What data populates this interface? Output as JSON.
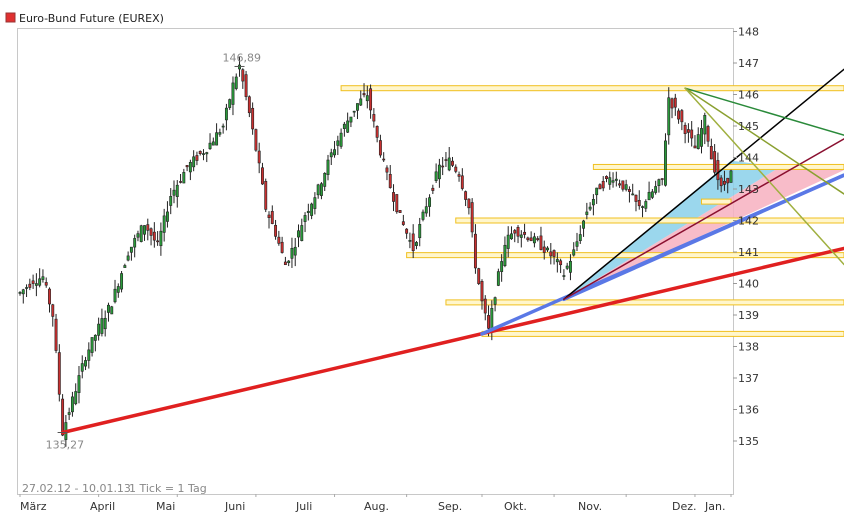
{
  "legend": {
    "title": "Euro-Bund Future (EUREX)",
    "color": "#e03030"
  },
  "footer": {
    "range_label": "27.02.12 - 10.01.13",
    "tick_label": "1 Tick = 1 Tag"
  },
  "chart_data": {
    "type": "candlestick",
    "title": "Euro-Bund Future (EUREX)",
    "x_labels": [
      "März",
      "April",
      "Mai",
      "Juni",
      "Juli",
      "Aug.",
      "Sep.",
      "Okt.",
      "Nov.",
      "Dez.",
      "Jan."
    ],
    "y_ticks": [
      135,
      136,
      137,
      138,
      139,
      140,
      141,
      142,
      143,
      144,
      145,
      146,
      147,
      148
    ],
    "ylim": [
      134.1,
      148.5
    ],
    "annotations": [
      {
        "text": "146,89",
        "day": 67,
        "value": 146.89
      },
      {
        "text": "135,27",
        "day": 13,
        "value": 135.27
      }
    ],
    "price_path": [
      [
        0,
        139.7
      ],
      [
        4,
        140.1
      ],
      [
        7,
        140.2
      ],
      [
        10,
        139.0
      ],
      [
        13,
        135.27
      ],
      [
        16,
        136.3
      ],
      [
        20,
        137.7
      ],
      [
        24,
        138.6
      ],
      [
        28,
        139.4
      ],
      [
        33,
        141.0
      ],
      [
        38,
        141.9
      ],
      [
        42,
        141.2
      ],
      [
        46,
        142.8
      ],
      [
        51,
        143.7
      ],
      [
        57,
        144.3
      ],
      [
        62,
        145.0
      ],
      [
        65,
        146.3
      ],
      [
        67,
        146.9
      ],
      [
        70,
        145.4
      ],
      [
        73,
        143.7
      ],
      [
        75,
        142.4
      ],
      [
        78,
        141.6
      ],
      [
        81,
        140.6
      ],
      [
        84,
        141.3
      ],
      [
        87,
        142.2
      ],
      [
        91,
        143.0
      ],
      [
        95,
        144.1
      ],
      [
        99,
        145.0
      ],
      [
        103,
        145.7
      ],
      [
        106,
        146.0
      ],
      [
        109,
        144.6
      ],
      [
        112,
        143.4
      ],
      [
        116,
        142.1
      ],
      [
        120,
        141.1
      ],
      [
        124,
        142.5
      ],
      [
        128,
        143.7
      ],
      [
        131,
        143.9
      ],
      [
        134,
        143.5
      ],
      [
        137,
        142.4
      ],
      [
        139,
        140.6
      ],
      [
        141,
        139.4
      ],
      [
        143,
        138.5
      ],
      [
        145,
        139.7
      ],
      [
        148,
        141.3
      ],
      [
        151,
        141.7
      ],
      [
        155,
        141.5
      ],
      [
        159,
        141.2
      ],
      [
        163,
        140.8
      ],
      [
        166,
        140.3
      ],
      [
        169,
        141.0
      ],
      [
        173,
        142.3
      ],
      [
        177,
        143.1
      ],
      [
        181,
        143.4
      ],
      [
        185,
        143.0
      ],
      [
        189,
        142.4
      ],
      [
        193,
        142.9
      ],
      [
        196,
        143.3
      ],
      [
        198,
        145.9
      ],
      [
        202,
        145.1
      ],
      [
        206,
        144.3
      ],
      [
        209,
        145.2
      ],
      [
        211,
        144.0
      ],
      [
        214,
        143.0
      ],
      [
        217,
        143.5
      ]
    ],
    "horizontal_levels": [
      {
        "value": 146.2,
        "day_start": 98,
        "color": "#f0c020"
      },
      {
        "value": 143.7,
        "day_start": 175,
        "color": "#f0c020"
      },
      {
        "value": 142.0,
        "day_start": 133,
        "color": "#f0c020"
      },
      {
        "value": 140.9,
        "day_start": 118,
        "color": "#f0c020"
      },
      {
        "value": 139.4,
        "day_start": 130,
        "color": "#f0c020"
      },
      {
        "value": 138.4,
        "day_start": 141,
        "color": "#f0c020"
      },
      {
        "value": 142.6,
        "day_start": 208,
        "day_end": 217,
        "color": "#f0c020"
      }
    ],
    "trend_lines": [
      {
        "color": "#e02020",
        "from": [
          13,
          135.27
        ],
        "to": [
          255,
          141.2
        ]
      },
      {
        "color": "#5a78e6",
        "from": [
          141,
          138.4
        ],
        "to": [
          255,
          143.6
        ]
      },
      {
        "color": "#5a78e6",
        "from": [
          166,
          139.5
        ],
        "to": [
          255,
          143.6
        ]
      },
      {
        "color": "#000000",
        "from": [
          166,
          139.5
        ],
        "to": [
          255,
          147.1
        ]
      },
      {
        "color": "#8a1030",
        "from": [
          166,
          139.5
        ],
        "to": [
          255,
          144.8
        ]
      },
      {
        "color": "#2a8a3a",
        "from": [
          203,
          146.2
        ],
        "to": [
          255,
          144.6
        ]
      },
      {
        "color": "#8aa030",
        "from": [
          203,
          146.2
        ],
        "to": [
          255,
          142.6
        ]
      },
      {
        "color": "#a0b040",
        "from": [
          203,
          146.2
        ],
        "to": [
          255,
          140.2
        ]
      }
    ],
    "fills": [
      {
        "color": "#8ad0ea",
        "top": [
          [
            166,
            139.5
          ],
          [
            217,
            143.9
          ],
          [
            232,
            143.7
          ]
        ],
        "bottom": [
          [
            232,
            143.7
          ],
          [
            166,
            139.5
          ]
        ]
      },
      {
        "color": "#f7b0c0",
        "top": [
          [
            166,
            139.5
          ],
          [
            232,
            143.7
          ],
          [
            255,
            143.6
          ]
        ],
        "bottom": [
          [
            255,
            143.6
          ],
          [
            166,
            139.5
          ]
        ]
      }
    ]
  }
}
